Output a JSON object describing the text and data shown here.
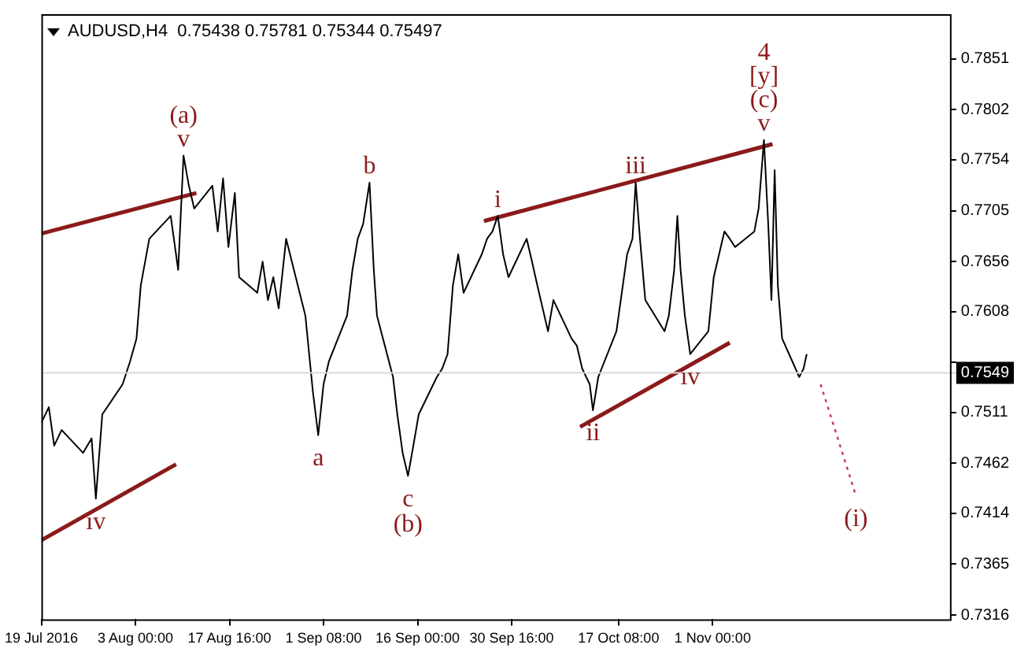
{
  "chart_data": {
    "type": "line",
    "title": "AUDUSD,H4  0.75438 0.75781 0.75344 0.75497",
    "xlim": [
      "2016-07-19T08:00",
      "2016-12-08T00:00"
    ],
    "xticks": [
      {
        "value": "2016-07-19T08:00",
        "label": "19 Jul 2016"
      },
      {
        "value": "2016-08-03T00:00",
        "label": "3 Aug 00:00"
      },
      {
        "value": "2016-08-17T16:00",
        "label": "17 Aug 16:00"
      },
      {
        "value": "2016-09-01T08:00",
        "label": "1 Sep 08:00"
      },
      {
        "value": "2016-09-16T00:00",
        "label": "16 Sep 00:00"
      },
      {
        "value": "2016-09-30T16:00",
        "label": "30 Sep 16:00"
      },
      {
        "value": "2016-10-17T08:00",
        "label": "17 Oct 08:00"
      },
      {
        "value": "2016-11-01T00:00",
        "label": "1 Nov 00:00"
      }
    ],
    "ylim": [
      0.7312,
      0.7894
    ],
    "yticks": [
      0.7316,
      0.7365,
      0.7414,
      0.7462,
      0.7511,
      {
        "value": 0.7559,
        "label": null
      },
      0.7608,
      0.7656,
      0.7705,
      0.7754,
      0.7802,
      0.7851
    ],
    "grid": false,
    "legend": false,
    "marker": "none",
    "series": [
      {
        "color": "#000000",
        "x": [
          "2016-07-19T08:00",
          "2016-07-20T12:00",
          "2016-07-21T08:00",
          "2016-07-22T12:00",
          "2016-07-25T20:00",
          "2016-07-27T04:00",
          "2016-07-27T20:00",
          "2016-07-28T20:00",
          "2016-08-01T00:00",
          "2016-08-02T04:00",
          "2016-08-03T04:00",
          "2016-08-03T20:00",
          "2016-08-05T04:00",
          "2016-08-08T12:00",
          "2016-08-09T16:00",
          "2016-08-10T12:00",
          "2016-08-11T08:00",
          "2016-08-12T04:00",
          "2016-08-15T00:00",
          "2016-08-15T20:00",
          "2016-08-16T16:00",
          "2016-08-17T12:00",
          "2016-08-18T12:00",
          "2016-08-19T04:00",
          "2016-08-22T00:00",
          "2016-08-22T20:00",
          "2016-08-23T16:00",
          "2016-08-24T12:00",
          "2016-08-25T08:00",
          "2016-08-26T12:00",
          "2016-08-29T12:00",
          "2016-08-30T16:00",
          "2016-08-31T12:00",
          "2016-09-01T08:00",
          "2016-09-02T04:00",
          "2016-09-05T00:00",
          "2016-09-05T20:00",
          "2016-09-06T16:00",
          "2016-09-07T12:00",
          "2016-09-08T12:00",
          "2016-09-09T04:00",
          "2016-09-09T16:00",
          "2016-09-12T04:00",
          "2016-09-12T20:00",
          "2016-09-13T16:00",
          "2016-09-14T12:00",
          "2016-09-15T08:00",
          "2016-09-16T04:00",
          "2016-09-19T00:00",
          "2016-09-19T20:00",
          "2016-09-20T16:00",
          "2016-09-21T12:00",
          "2016-09-22T08:00",
          "2016-09-23T04:00",
          "2016-09-26T00:00",
          "2016-09-26T20:00",
          "2016-09-27T16:00",
          "2016-09-28T12:00",
          "2016-09-29T08:00",
          "2016-09-30T04:00",
          "2016-10-03T00:00",
          "2016-10-03T20:00",
          "2016-10-04T16:00",
          "2016-10-05T12:00",
          "2016-10-06T08:00",
          "2016-10-07T04:00",
          "2016-10-10T00:00",
          "2016-10-10T20:00",
          "2016-10-11T16:00",
          "2016-10-12T20:00",
          "2016-10-13T08:00",
          "2016-10-14T04:00",
          "2016-10-17T00:00",
          "2016-10-17T20:00",
          "2016-10-18T16:00",
          "2016-10-19T12:00",
          "2016-10-20T00:00",
          "2016-10-20T16:00",
          "2016-10-21T12:00",
          "2016-10-24T12:00",
          "2016-10-25T04:00",
          "2016-10-26T00:00",
          "2016-10-26T12:00",
          "2016-10-27T00:00",
          "2016-10-27T16:00",
          "2016-10-28T12:00",
          "2016-10-31T08:00",
          "2016-11-01T04:00",
          "2016-11-02T00:00",
          "2016-11-02T20:00",
          "2016-11-03T16:00",
          "2016-11-04T12:00",
          "2016-11-07T12:00",
          "2016-11-08T04:00",
          "2016-11-09T00:00",
          "2016-11-09T16:00",
          "2016-11-10T04:00",
          "2016-11-10T16:00",
          "2016-11-11T04:00",
          "2016-11-11T20:00",
          "2016-11-14T12:00",
          "2016-11-15T04:00",
          "2016-11-15T16:00"
        ],
        "values": [
          0.7501,
          0.7516,
          0.7479,
          0.7494,
          0.7472,
          0.7486,
          0.7428,
          0.7509,
          0.7538,
          0.756,
          0.7582,
          0.7633,
          0.7678,
          0.77,
          0.7648,
          0.7758,
          0.7729,
          0.7707,
          0.7729,
          0.7685,
          0.7736,
          0.767,
          0.7722,
          0.7641,
          0.7626,
          0.7656,
          0.7619,
          0.7641,
          0.7611,
          0.7678,
          0.7604,
          0.7531,
          0.7489,
          0.7538,
          0.756,
          0.7604,
          0.7648,
          0.7678,
          0.7692,
          0.7732,
          0.7648,
          0.7604,
          0.7545,
          0.7509,
          0.7472,
          0.745,
          0.7479,
          0.7509,
          0.7545,
          0.7553,
          0.7567,
          0.7633,
          0.7663,
          0.7626,
          0.7663,
          0.7678,
          0.7685,
          0.77,
          0.7663,
          0.7641,
          0.7678,
          0.7656,
          0.7633,
          0.7611,
          0.7589,
          0.7619,
          0.7582,
          0.7575,
          0.7553,
          0.7538,
          0.7513,
          0.7545,
          0.7589,
          0.7626,
          0.7663,
          0.7678,
          0.7732,
          0.7678,
          0.7619,
          0.7589,
          0.7604,
          0.7648,
          0.77,
          0.7648,
          0.7604,
          0.7567,
          0.7589,
          0.7641,
          0.7663,
          0.7685,
          0.7678,
          0.767,
          0.7685,
          0.7707,
          0.7773,
          0.7692,
          0.7619,
          0.7744,
          0.7633,
          0.7582,
          0.7545,
          0.7553,
          0.7567
        ]
      },
      {
        "color": "#8b1a1a",
        "x": [
          "2016-07-19T08:00",
          "2016-08-12T12:00"
        ],
        "values": [
          0.7683,
          0.7722
        ]
      },
      {
        "color": "#8b1a1a",
        "x": [
          "2016-07-19T08:00",
          "2016-08-09T08:00"
        ],
        "values": [
          0.7388,
          0.7461
        ]
      },
      {
        "color": "#8b1a1a",
        "x": [
          "2016-09-26T08:00",
          "2016-11-10T08:00"
        ],
        "values": [
          0.7695,
          0.7769
        ]
      },
      {
        "color": "#8b1a1a",
        "x": [
          "2016-10-11T08:00",
          "2016-11-03T16:00"
        ],
        "values": [
          0.7497,
          0.7578
        ]
      },
      {
        "color": "#cc3366",
        "line_style": "dotted",
        "x": [
          "2016-11-17T20:00",
          "2016-11-23T08:00"
        ],
        "values": [
          0.7538,
          0.7431
        ]
      }
    ],
    "ref_lines": [
      {
        "axis": "y",
        "value": 0.7549,
        "label": "0.7549"
      }
    ],
    "annotations": [
      {
        "text": "(a)",
        "x": "2016-08-10T12:00",
        "y": 0.7758
      },
      {
        "text": "v",
        "x": "2016-08-10T12:00",
        "y": 0.7758
      },
      {
        "text": "b",
        "x": "2016-09-08T12:00",
        "y": 0.7732
      },
      {
        "text": "i",
        "x": "2016-09-28T12:00",
        "y": 0.77
      },
      {
        "text": "iii",
        "x": "2016-10-20T00:00",
        "y": 0.7732
      },
      {
        "text": "4",
        "x": "2016-11-09T00:00",
        "y": 0.7773
      },
      {
        "text": "[y]",
        "x": "2016-11-09T00:00",
        "y": 0.7773
      },
      {
        "text": "(c)",
        "x": "2016-11-09T00:00",
        "y": 0.7773
      },
      {
        "text": "v",
        "x": "2016-11-09T00:00",
        "y": 0.7773
      },
      {
        "text": "iv",
        "x": "2016-07-27T20:00",
        "y": 0.7428
      },
      {
        "text": "a",
        "x": "2016-08-31T12:00",
        "y": 0.7489
      },
      {
        "text": "c",
        "x": "2016-09-14T12:00",
        "y": 0.745
      },
      {
        "text": "(b)",
        "x": "2016-09-14T12:00",
        "y": 0.745
      },
      {
        "text": "ii",
        "x": "2016-10-13T08:00",
        "y": 0.7513
      },
      {
        "text": "iv",
        "x": "2016-10-28T12:00",
        "y": 0.7567
      },
      {
        "text": "(i)",
        "x": "2016-11-23T08:00",
        "y": 0.7431
      }
    ]
  }
}
